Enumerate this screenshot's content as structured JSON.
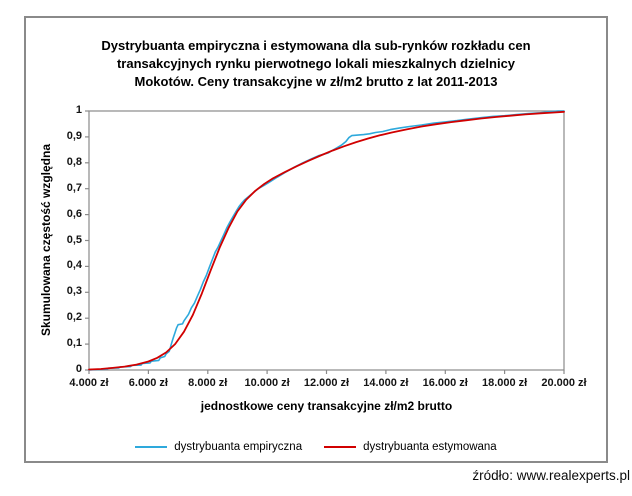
{
  "source_text": "źródło: www.realexperts.pl",
  "colors": {
    "frame": "#8a8a8a",
    "axis": "#8a8a8a",
    "empirical_line": "#2ea9dc",
    "estimated_line": "#d10000",
    "text": "#000000"
  },
  "chart_data": {
    "type": "line",
    "title": "Dystrybuanta empiryczna i estymowana dla sub-rynków rozkładu cen transakcyjnych rynku pierwotnego lokali mieszkalnych dzielnicy Mokotów. Ceny transakcyjne w zł/m2 brutto z lat 2011-2013",
    "title_lines": [
      "Dystrybuanta empiryczna i estymowana dla sub-rynków rozkładu cen",
      "transakcyjnych rynku pierwotnego lokali mieszkalnych dzielnicy",
      "Mokotów. Ceny transakcyjne w zł/m2 brutto z lat 2011-2013"
    ],
    "xlabel": "jednostkowe ceny transakcyjne zł/m2 brutto",
    "ylabel": "Skumulowana częstość względna",
    "xlim": [
      4000,
      20000
    ],
    "ylim": [
      0,
      1
    ],
    "grid": false,
    "legend_position": "bottom",
    "x_ticks": {
      "values": [
        4000,
        6000,
        8000,
        10000,
        12000,
        14000,
        16000,
        18000,
        20000
      ],
      "labels": [
        "4.000 zł",
        "6.000 zł",
        "8.000 zł",
        "10.000 zł",
        "12.000 zł",
        "14.000 zł",
        "16.000 zł",
        "18.000 zł",
        "20.000 zł"
      ]
    },
    "y_ticks": {
      "values": [
        1,
        0.9,
        0.8,
        0.7,
        0.6,
        0.5,
        0.4,
        0.3,
        0.2,
        0.1,
        0
      ],
      "labels": [
        "1",
        "0,9",
        "0,8",
        "0,7",
        "0,6",
        "0,5",
        "0,4",
        "0,3",
        "0,2",
        "0,1",
        "0"
      ]
    },
    "series": [
      {
        "name": "dystrybuanta empiryczna",
        "color": "#2ea9dc",
        "points": [
          [
            4000,
            0.0
          ],
          [
            4250,
            0.002
          ],
          [
            4600,
            0.003
          ],
          [
            4650,
            0.007
          ],
          [
            5000,
            0.008
          ],
          [
            5050,
            0.012
          ],
          [
            5400,
            0.013
          ],
          [
            5450,
            0.018
          ],
          [
            5750,
            0.019
          ],
          [
            5800,
            0.025
          ],
          [
            6050,
            0.027
          ],
          [
            6100,
            0.034
          ],
          [
            6350,
            0.037
          ],
          [
            6400,
            0.047
          ],
          [
            6550,
            0.052
          ],
          [
            6600,
            0.063
          ],
          [
            6700,
            0.072
          ],
          [
            6750,
            0.09
          ],
          [
            6800,
            0.11
          ],
          [
            6850,
            0.128
          ],
          [
            6900,
            0.145
          ],
          [
            6950,
            0.163
          ],
          [
            7000,
            0.175
          ],
          [
            7150,
            0.178
          ],
          [
            7200,
            0.19
          ],
          [
            7350,
            0.215
          ],
          [
            7450,
            0.24
          ],
          [
            7550,
            0.258
          ],
          [
            7650,
            0.285
          ],
          [
            7750,
            0.31
          ],
          [
            7850,
            0.34
          ],
          [
            7950,
            0.365
          ],
          [
            8050,
            0.395
          ],
          [
            8150,
            0.425
          ],
          [
            8250,
            0.455
          ],
          [
            8350,
            0.475
          ],
          [
            8450,
            0.5
          ],
          [
            8550,
            0.525
          ],
          [
            8650,
            0.55
          ],
          [
            8750,
            0.572
          ],
          [
            8850,
            0.592
          ],
          [
            8950,
            0.612
          ],
          [
            9050,
            0.63
          ],
          [
            9150,
            0.645
          ],
          [
            9250,
            0.658
          ],
          [
            9400,
            0.672
          ],
          [
            9550,
            0.686
          ],
          [
            9700,
            0.7
          ],
          [
            9900,
            0.713
          ],
          [
            10100,
            0.727
          ],
          [
            10350,
            0.745
          ],
          [
            10600,
            0.762
          ],
          [
            10900,
            0.782
          ],
          [
            11200,
            0.8
          ],
          [
            11500,
            0.816
          ],
          [
            11750,
            0.828
          ],
          [
            11900,
            0.833
          ],
          [
            12050,
            0.838
          ],
          [
            12200,
            0.848
          ],
          [
            12350,
            0.858
          ],
          [
            12500,
            0.868
          ],
          [
            12650,
            0.882
          ],
          [
            12750,
            0.897
          ],
          [
            12850,
            0.905
          ],
          [
            13050,
            0.907
          ],
          [
            13250,
            0.909
          ],
          [
            13450,
            0.912
          ],
          [
            13650,
            0.917
          ],
          [
            13900,
            0.921
          ],
          [
            14150,
            0.928
          ],
          [
            14450,
            0.934
          ],
          [
            14800,
            0.94
          ],
          [
            15200,
            0.946
          ],
          [
            15600,
            0.953
          ],
          [
            16000,
            0.958
          ],
          [
            16400,
            0.963
          ],
          [
            16800,
            0.969
          ],
          [
            17200,
            0.974
          ],
          [
            17600,
            0.979
          ],
          [
            18000,
            0.982
          ],
          [
            18400,
            0.986
          ],
          [
            18800,
            0.99
          ],
          [
            19200,
            0.993
          ],
          [
            19500,
            0.997
          ],
          [
            19800,
            1.0
          ],
          [
            20000,
            1.0
          ]
        ]
      },
      {
        "name": "dystrybuanta estymowana",
        "color": "#d10000",
        "points": [
          [
            4000,
            0.002
          ],
          [
            4400,
            0.004
          ],
          [
            4800,
            0.008
          ],
          [
            5200,
            0.013
          ],
          [
            5600,
            0.021
          ],
          [
            6000,
            0.033
          ],
          [
            6300,
            0.047
          ],
          [
            6600,
            0.068
          ],
          [
            6900,
            0.1
          ],
          [
            7200,
            0.148
          ],
          [
            7500,
            0.213
          ],
          [
            7800,
            0.295
          ],
          [
            8100,
            0.385
          ],
          [
            8400,
            0.472
          ],
          [
            8700,
            0.548
          ],
          [
            9000,
            0.612
          ],
          [
            9300,
            0.658
          ],
          [
            9600,
            0.692
          ],
          [
            9900,
            0.718
          ],
          [
            10200,
            0.74
          ],
          [
            10600,
            0.764
          ],
          [
            11000,
            0.787
          ],
          [
            11400,
            0.808
          ],
          [
            11800,
            0.828
          ],
          [
            12200,
            0.847
          ],
          [
            12600,
            0.864
          ],
          [
            13000,
            0.88
          ],
          [
            13400,
            0.894
          ],
          [
            13800,
            0.906
          ],
          [
            14200,
            0.917
          ],
          [
            14700,
            0.929
          ],
          [
            15200,
            0.94
          ],
          [
            15700,
            0.949
          ],
          [
            16200,
            0.957
          ],
          [
            16700,
            0.964
          ],
          [
            17200,
            0.971
          ],
          [
            17700,
            0.977
          ],
          [
            18200,
            0.982
          ],
          [
            18700,
            0.987
          ],
          [
            19200,
            0.991
          ],
          [
            19600,
            0.994
          ],
          [
            20000,
            0.997
          ]
        ]
      }
    ]
  }
}
